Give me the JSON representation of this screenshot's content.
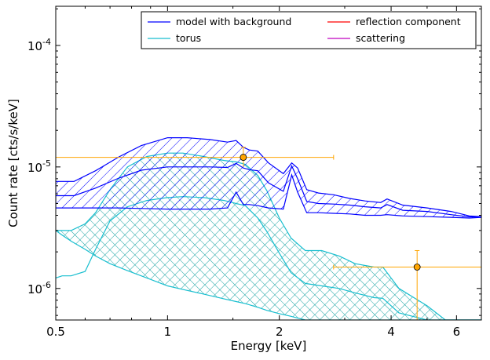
{
  "chart_data": {
    "type": "line",
    "title": "",
    "xlabel": "Energy [keV]",
    "ylabel": "Count rate [cts/s/keV]",
    "xscale": "log",
    "yscale": "log",
    "xlim": [
      0.5,
      7.0
    ],
    "ylim": [
      5.5e-07,
      0.00021
    ],
    "x_ticks": [
      {
        "value": 0.5,
        "label": "0.5"
      },
      {
        "value": 1,
        "label": "1"
      },
      {
        "value": 2,
        "label": "2"
      },
      {
        "value": 4,
        "label": "4"
      },
      {
        "value": 6,
        "label": "6"
      }
    ],
    "y_ticks": [
      {
        "value": 1e-06,
        "base": "10",
        "exp": "-6"
      },
      {
        "value": 1e-05,
        "base": "10",
        "exp": "-5"
      },
      {
        "value": 0.0001,
        "base": "10",
        "exp": "-4"
      }
    ],
    "legend": {
      "placement": "top-right",
      "columns": 2,
      "entries": [
        {
          "label": "model with background",
          "color": "#0000ff"
        },
        {
          "label": "reflection component",
          "color": "#ff0000"
        },
        {
          "label": "torus",
          "color": "#17becf"
        },
        {
          "label": "scattering",
          "color": "#bf00bf"
        }
      ]
    },
    "series": [
      {
        "name": "model with background",
        "color": "#0000ff",
        "style": "hatched band (upper / median / lower)",
        "x": [
          0.5,
          0.56,
          0.64,
          0.74,
          0.85,
          1.0,
          1.13,
          1.3,
          1.45,
          1.53,
          1.6,
          1.66,
          1.75,
          1.87,
          2.05,
          2.16,
          2.24,
          2.37,
          2.55,
          2.8,
          3.1,
          3.4,
          3.75,
          3.9,
          4.3,
          5.0,
          5.8,
          6.5,
          7.0
        ],
        "upper": [
          7.6e-06,
          7.6e-06,
          9.3e-06,
          1.21e-05,
          1.5e-05,
          1.74e-05,
          1.74e-05,
          1.68e-05,
          1.6e-05,
          1.65e-05,
          1.45e-05,
          1.38e-05,
          1.35e-05,
          1.08e-05,
          8.8e-06,
          1.08e-05,
          9.8e-06,
          6.5e-06,
          6.1e-06,
          5.9e-06,
          5.5e-06,
          5.25e-06,
          5.1e-06,
          5.45e-06,
          4.85e-06,
          4.6e-06,
          4.3e-06,
          3.95e-06,
          3.9e-06
        ],
        "median": [
          5.8e-06,
          5.8e-06,
          6.7e-06,
          8.1e-06,
          9.4e-06,
          1e-05,
          1e-05,
          1e-05,
          9.9e-06,
          1.07e-05,
          9.8e-06,
          9.5e-06,
          9.3e-06,
          7.4e-06,
          6.3e-06,
          1.02e-05,
          8e-06,
          5.2e-06,
          5e-06,
          4.95e-06,
          4.85e-06,
          4.7e-06,
          4.6e-06,
          4.9e-06,
          4.4e-06,
          4.3e-06,
          4.05e-06,
          3.88e-06,
          3.9e-06
        ],
        "lower": [
          4.6e-06,
          4.6e-06,
          4.6e-06,
          4.6e-06,
          4.55e-06,
          4.5e-06,
          4.5e-06,
          4.5e-06,
          4.6e-06,
          6.2e-06,
          4.9e-06,
          4.9e-06,
          4.8e-06,
          4.6e-06,
          4.5e-06,
          8.6e-06,
          6.2e-06,
          4.2e-06,
          4.2e-06,
          4.15e-06,
          4.1e-06,
          4e-06,
          4e-06,
          4.05e-06,
          3.95e-06,
          3.9e-06,
          3.85e-06,
          3.8e-06,
          3.85e-06
        ]
      },
      {
        "name": "torus",
        "color": "#17becf",
        "style": "cross-hatched band (upper / median / lower)",
        "x": [
          0.5,
          0.52,
          0.55,
          0.6,
          0.64,
          0.7,
          0.78,
          0.88,
          1.0,
          1.1,
          1.25,
          1.42,
          1.53,
          1.62,
          1.75,
          1.85,
          2.0,
          2.15,
          2.35,
          2.6,
          2.9,
          3.2,
          3.6,
          3.8,
          4.2,
          5.0,
          5.6,
          6.0,
          7.0
        ],
        "upper": [
          3e-06,
          3e-06,
          3e-06,
          3.4e-06,
          4.2e-06,
          6.5e-06,
          1e-05,
          1.22e-05,
          1.3e-05,
          1.3e-05,
          1.22e-05,
          1.13e-05,
          1.1e-05,
          1.05e-05,
          8.5e-06,
          6.4e-06,
          3.8e-06,
          2.6e-06,
          2.05e-06,
          2.05e-06,
          1.85e-06,
          1.6e-06,
          1.5e-06,
          1.5e-06,
          1e-06,
          7.2e-07,
          5.5e-07,
          5.5e-07,
          5.5e-07
        ],
        "median": [
          1.22e-06,
          1.27e-06,
          1.27e-06,
          1.38e-06,
          2.1e-06,
          3.6e-06,
          4.7e-06,
          5.3e-06,
          5.6e-06,
          5.7e-06,
          5.6e-06,
          5.3e-06,
          5e-06,
          4.8e-06,
          3.8e-06,
          2.95e-06,
          1.95e-06,
          1.35e-06,
          1.1e-06,
          1.05e-06,
          1e-06,
          9.2e-07,
          8.4e-07,
          8.3e-07,
          6.3e-07,
          5.5e-07,
          5.5e-07,
          5.5e-07,
          5.5e-07
        ],
        "lower": [
          3e-06,
          2.75e-06,
          2.45e-06,
          2.1e-06,
          1.85e-06,
          1.6e-06,
          1.4e-06,
          1.22e-06,
          1.05e-06,
          9.8e-07,
          9e-07,
          8.2e-07,
          7.8e-07,
          7.5e-07,
          7e-07,
          6.6e-07,
          6.2e-07,
          5.9e-07,
          5.5e-07,
          5.5e-07,
          5.5e-07,
          5.5e-07,
          5.5e-07,
          5.5e-07,
          5.5e-07,
          5.5e-07,
          5.5e-07,
          5.5e-07,
          5.5e-07
        ]
      }
    ],
    "data_points": {
      "name": "data",
      "color": "#ffa500",
      "points": [
        {
          "x": 1.6,
          "y": 1.2e-05,
          "xerr": [
            0.5,
            2.8
          ],
          "yerr": [
            1e-05,
            1.45e-05
          ]
        },
        {
          "x": 4.7,
          "y": 1.5e-06,
          "xerr": [
            2.8,
            7.0
          ],
          "yerr": [
            5.5e-07,
            2.05e-06
          ]
        }
      ]
    }
  }
}
